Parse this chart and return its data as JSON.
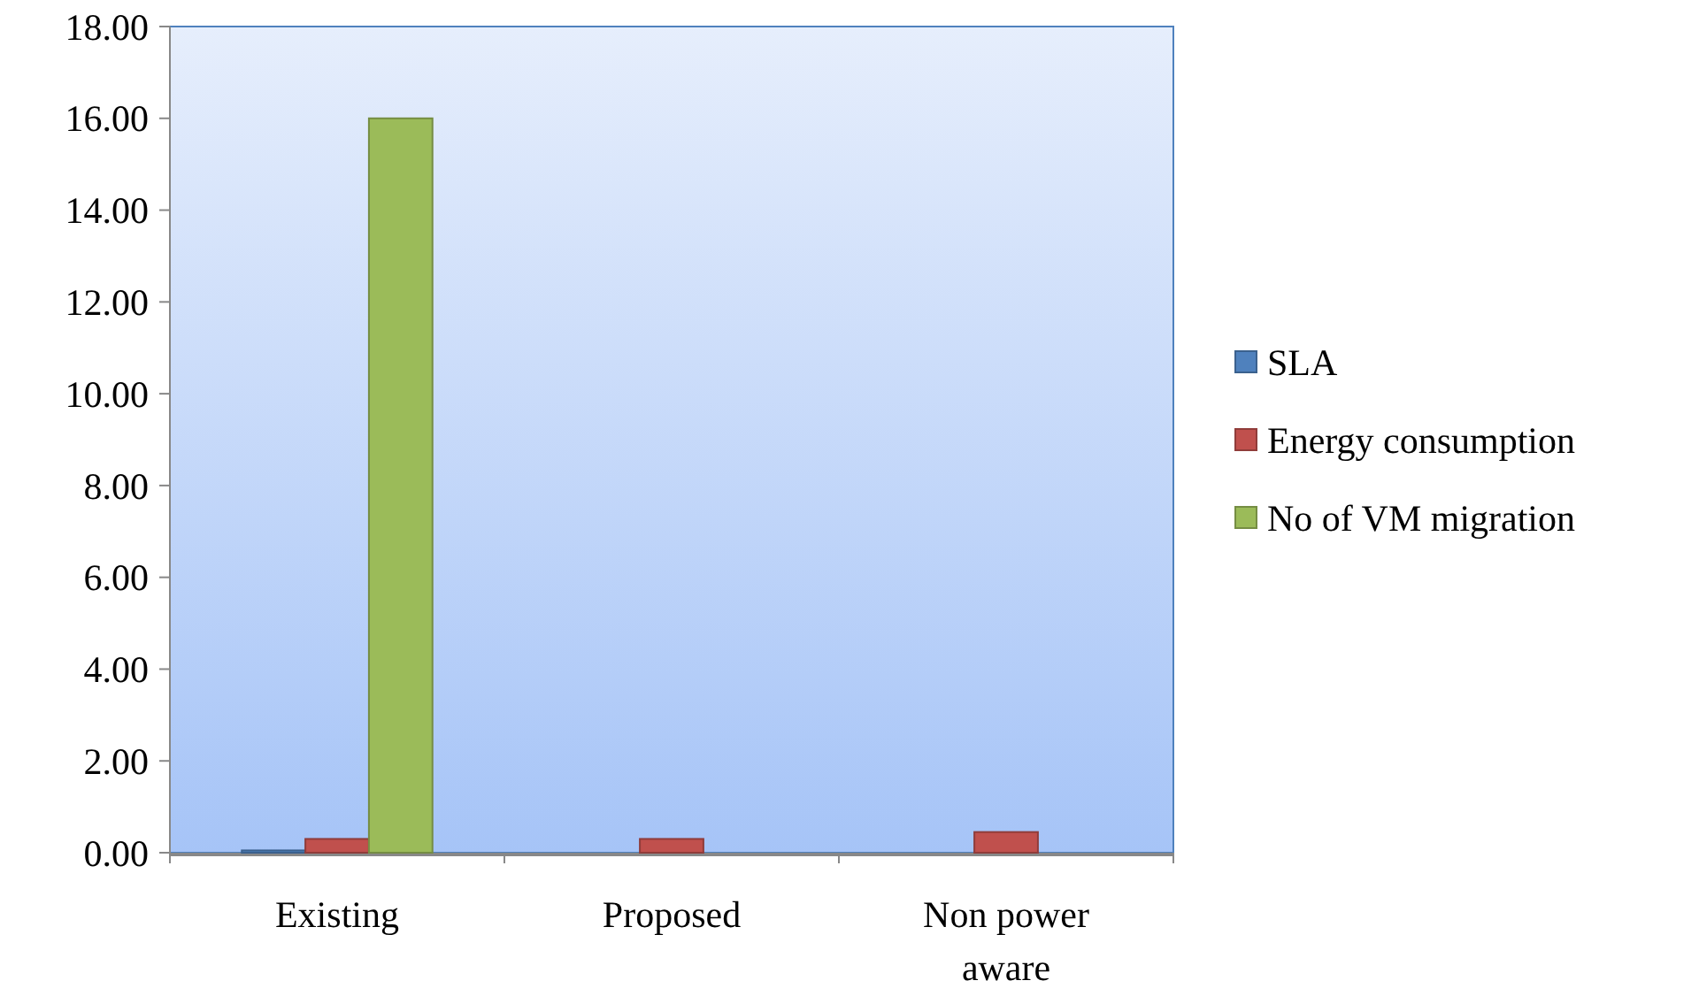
{
  "chart_data": {
    "type": "bar",
    "categories": [
      "Existing",
      "Proposed",
      "Non power aware"
    ],
    "series": [
      {
        "name": "SLA",
        "color": "#4f81bd",
        "values": [
          0.05,
          0,
          0
        ]
      },
      {
        "name": "Energy consumption",
        "color": "#c0504d",
        "values": [
          0.3,
          0.3,
          0.45
        ]
      },
      {
        "name": "No of VM migration",
        "color": "#9bbb59",
        "values": [
          16,
          0,
          0
        ]
      }
    ],
    "ylim": [
      0,
      18
    ],
    "yticks": [
      {
        "value": 0,
        "label": "0.00"
      },
      {
        "value": 2,
        "label": "2.00"
      },
      {
        "value": 4,
        "label": "4.00"
      },
      {
        "value": 6,
        "label": "6.00"
      },
      {
        "value": 8,
        "label": "8.00"
      },
      {
        "value": 10,
        "label": "10.00"
      },
      {
        "value": 12,
        "label": "12.00"
      },
      {
        "value": 14,
        "label": "14.00"
      },
      {
        "value": 16,
        "label": "16.00"
      },
      {
        "value": 18,
        "label": "18.00"
      }
    ],
    "grid": false,
    "legend": "right"
  }
}
